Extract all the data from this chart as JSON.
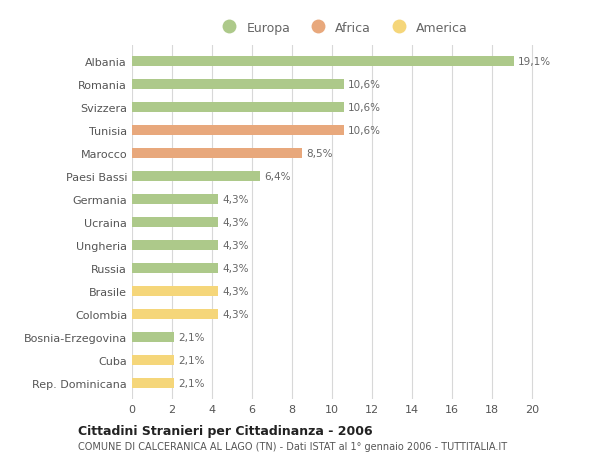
{
  "categories": [
    "Albania",
    "Romania",
    "Svizzera",
    "Tunisia",
    "Marocco",
    "Paesi Bassi",
    "Germania",
    "Ucraina",
    "Ungheria",
    "Russia",
    "Brasile",
    "Colombia",
    "Bosnia-Erzegovina",
    "Cuba",
    "Rep. Dominicana"
  ],
  "values": [
    19.1,
    10.6,
    10.6,
    10.6,
    8.5,
    6.4,
    4.3,
    4.3,
    4.3,
    4.3,
    4.3,
    4.3,
    2.1,
    2.1,
    2.1
  ],
  "labels": [
    "19,1%",
    "10,6%",
    "10,6%",
    "10,6%",
    "8,5%",
    "6,4%",
    "4,3%",
    "4,3%",
    "4,3%",
    "4,3%",
    "4,3%",
    "4,3%",
    "2,1%",
    "2,1%",
    "2,1%"
  ],
  "continents": [
    "Europa",
    "Europa",
    "Europa",
    "Africa",
    "Africa",
    "Europa",
    "Europa",
    "Europa",
    "Europa",
    "Europa",
    "America",
    "America",
    "Europa",
    "America",
    "America"
  ],
  "colors": {
    "Europa": "#adc98a",
    "Africa": "#e8a87c",
    "America": "#f5d67a"
  },
  "xlim": [
    0,
    21
  ],
  "xticks": [
    0,
    2,
    4,
    6,
    8,
    10,
    12,
    14,
    16,
    18,
    20
  ],
  "title1": "Cittadini Stranieri per Cittadinanza - 2006",
  "title2": "COMUNE DI CALCERANICA AL LAGO (TN) - Dati ISTAT al 1° gennaio 2006 - TUTTITALIA.IT",
  "bg_color": "#ffffff",
  "grid_color": "#d8d8d8",
  "bar_height": 0.45
}
